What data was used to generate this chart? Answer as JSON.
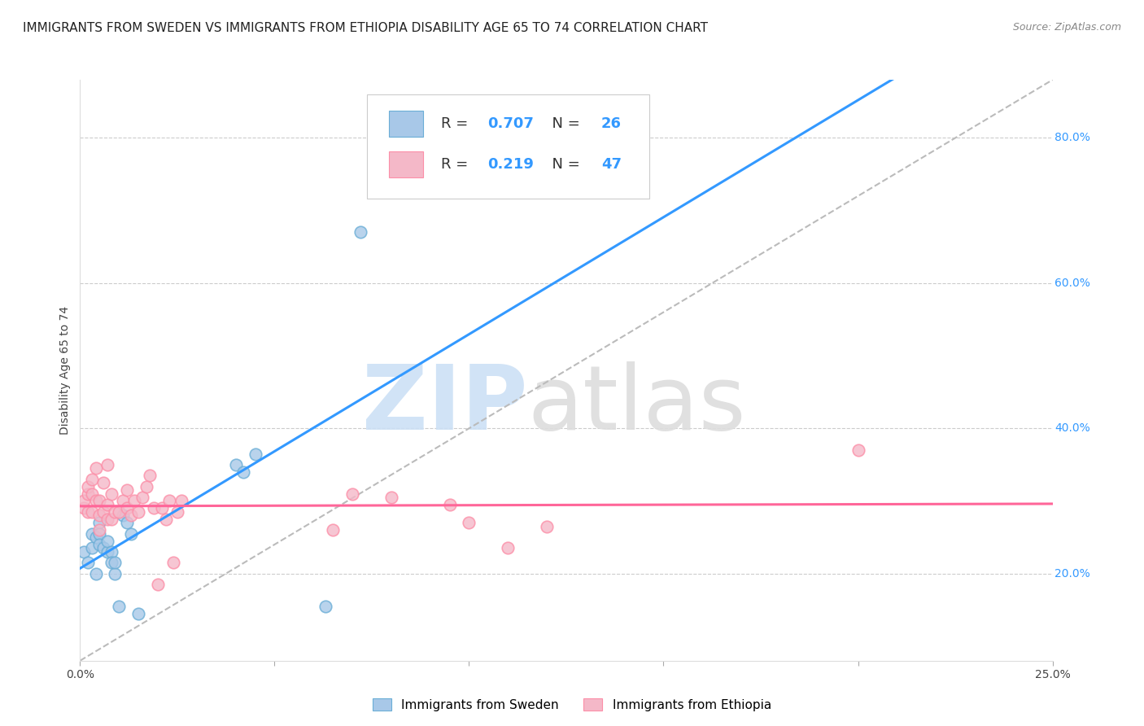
{
  "title": "IMMIGRANTS FROM SWEDEN VS IMMIGRANTS FROM ETHIOPIA DISABILITY AGE 65 TO 74 CORRELATION CHART",
  "source": "Source: ZipAtlas.com",
  "ylabel": "Disability Age 65 to 74",
  "xmin": 0.0,
  "xmax": 0.25,
  "ymin": 0.08,
  "ymax": 0.88,
  "right_yticks": [
    0.2,
    0.4,
    0.6,
    0.8
  ],
  "right_yticklabels": [
    "20.0%",
    "40.0%",
    "60.0%",
    "80.0%"
  ],
  "xticks": [
    0.0,
    0.05,
    0.1,
    0.15,
    0.2,
    0.25
  ],
  "xticklabels": [
    "0.0%",
    "",
    "",
    "",
    "",
    "25.0%"
  ],
  "sweden_color": "#a8c8e8",
  "sweden_edge_color": "#6baed6",
  "ethiopia_color": "#f4b8c8",
  "ethiopia_edge_color": "#fc8fa8",
  "blue_line_color": "#3399ff",
  "pink_line_color": "#ff6699",
  "diag_color": "#bbbbbb",
  "sweden_R": 0.707,
  "sweden_N": 26,
  "ethiopia_R": 0.219,
  "ethiopia_N": 47,
  "sweden_scatter_x": [
    0.001,
    0.002,
    0.003,
    0.003,
    0.004,
    0.004,
    0.005,
    0.005,
    0.005,
    0.006,
    0.007,
    0.007,
    0.008,
    0.008,
    0.009,
    0.009,
    0.01,
    0.011,
    0.012,
    0.013,
    0.015,
    0.04,
    0.042,
    0.045,
    0.063,
    0.072
  ],
  "sweden_scatter_y": [
    0.23,
    0.215,
    0.235,
    0.255,
    0.2,
    0.25,
    0.27,
    0.255,
    0.24,
    0.235,
    0.23,
    0.245,
    0.23,
    0.215,
    0.2,
    0.215,
    0.155,
    0.28,
    0.27,
    0.255,
    0.145,
    0.35,
    0.34,
    0.365,
    0.155,
    0.67
  ],
  "ethiopia_scatter_x": [
    0.001,
    0.001,
    0.002,
    0.002,
    0.002,
    0.003,
    0.003,
    0.003,
    0.004,
    0.004,
    0.005,
    0.005,
    0.005,
    0.006,
    0.006,
    0.007,
    0.007,
    0.007,
    0.008,
    0.008,
    0.009,
    0.01,
    0.011,
    0.012,
    0.012,
    0.013,
    0.014,
    0.015,
    0.016,
    0.017,
    0.018,
    0.019,
    0.02,
    0.021,
    0.022,
    0.023,
    0.024,
    0.025,
    0.026,
    0.065,
    0.07,
    0.08,
    0.095,
    0.1,
    0.11,
    0.12,
    0.2
  ],
  "ethiopia_scatter_y": [
    0.29,
    0.3,
    0.285,
    0.31,
    0.32,
    0.285,
    0.31,
    0.33,
    0.3,
    0.345,
    0.26,
    0.28,
    0.3,
    0.285,
    0.325,
    0.275,
    0.295,
    0.35,
    0.275,
    0.31,
    0.285,
    0.285,
    0.3,
    0.29,
    0.315,
    0.28,
    0.3,
    0.285,
    0.305,
    0.32,
    0.335,
    0.29,
    0.185,
    0.29,
    0.275,
    0.3,
    0.215,
    0.285,
    0.3,
    0.26,
    0.31,
    0.305,
    0.295,
    0.27,
    0.235,
    0.265,
    0.37
  ],
  "background_color": "#ffffff",
  "grid_color": "#cccccc",
  "title_fontsize": 11,
  "source_fontsize": 9,
  "watermark_zip_color": "#cce0f5",
  "watermark_atlas_color": "#dddddd",
  "legend_label_sweden": "Immigrants from Sweden",
  "legend_label_ethiopia": "Immigrants from Ethiopia"
}
